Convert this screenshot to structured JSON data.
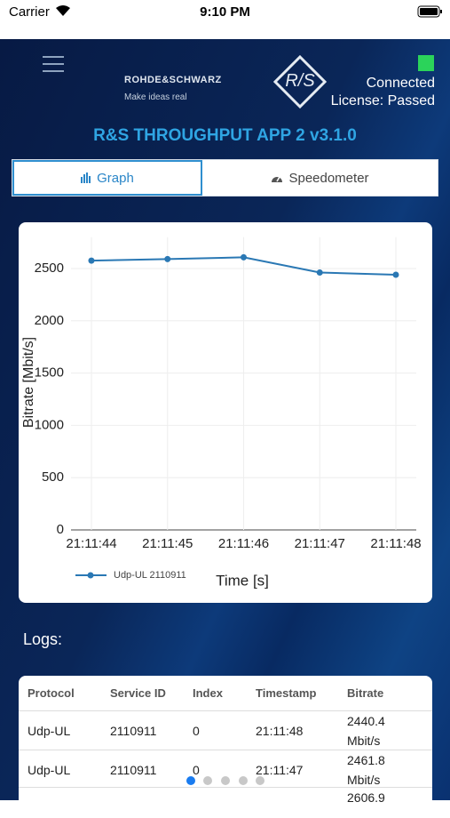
{
  "status_bar": {
    "carrier": "Carrier",
    "time": "9:10 PM"
  },
  "header": {
    "brand": "ROHDE&SCHWARZ",
    "slogan": "Make ideas real",
    "connection": "Connected",
    "license": "License: Passed",
    "title": "R&S THROUGHPUT APP 2 v3.1.0"
  },
  "tabs": [
    {
      "label": "Graph"
    },
    {
      "label": "Speedometer"
    }
  ],
  "chart_data": {
    "type": "line",
    "categories": [
      "21:11:44",
      "21:11:45",
      "21:11:46",
      "21:11:47",
      "21:11:48"
    ],
    "series": [
      {
        "name": "Udp-UL 2110911",
        "color": "#2a78b4",
        "values": [
          2575,
          2590,
          2606.9,
          2461.8,
          2440.4
        ]
      }
    ],
    "ylim": [
      0,
      2800
    ],
    "yticks": [
      0,
      500,
      1000,
      1500,
      2000,
      2500
    ],
    "grid": true,
    "y_label": "Bitrate [Mbit/s]",
    "x_label": "Time [s]",
    "legend": "bottom-left"
  },
  "logs": {
    "title": "Logs:",
    "columns": [
      "Protocol",
      "Service ID",
      "Index",
      "Timestamp",
      "Bitrate"
    ],
    "rows": [
      [
        "Udp-UL",
        "2110911",
        "0",
        "21:11:48",
        "2440.4 Mbit/s"
      ],
      [
        "Udp-UL",
        "2110911",
        "0",
        "21:11:47",
        "2461.8 Mbit/s"
      ],
      [
        null,
        null,
        null,
        null,
        "2606.9"
      ]
    ]
  }
}
